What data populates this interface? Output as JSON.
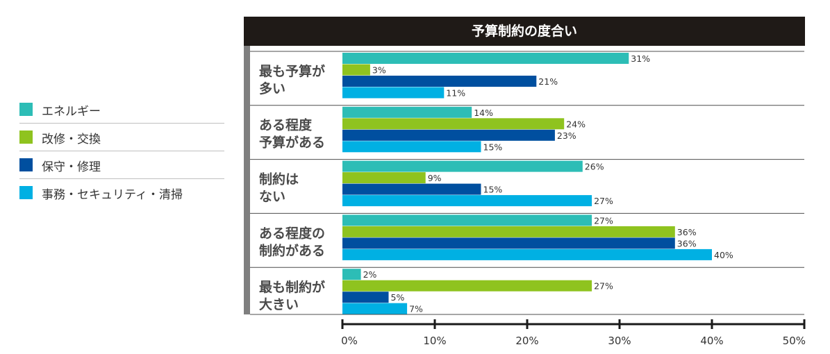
{
  "legend": {
    "items": [
      {
        "label": "エネルギー",
        "color": "#2dbdb6"
      },
      {
        "label": "改修・交換",
        "color": "#8fc31f"
      },
      {
        "label": "保守・修理",
        "color": "#004f9f"
      },
      {
        "label": "事務・セキュリティ・清掃",
        "color": "#00b0e3"
      }
    ]
  },
  "chart_data": {
    "type": "bar",
    "orientation": "horizontal",
    "title": "予算制約の度合い",
    "categories": [
      [
        "最も予算が",
        "多い"
      ],
      [
        "ある程度",
        "予算がある"
      ],
      [
        "制約は",
        "ない"
      ],
      [
        "ある程度の",
        "制約がある"
      ],
      [
        "最も制約が",
        "大きい"
      ]
    ],
    "series": [
      {
        "name": "エネルギー",
        "color": "#2dbdb6",
        "values": [
          31,
          14,
          26,
          27,
          2
        ]
      },
      {
        "name": "改修・交換",
        "color": "#8fc31f",
        "values": [
          3,
          24,
          9,
          36,
          27
        ]
      },
      {
        "name": "保守・修理",
        "color": "#004f9f",
        "values": [
          21,
          23,
          15,
          36,
          5
        ]
      },
      {
        "name": "事務・セキュリティ・清掃",
        "color": "#00b0e3",
        "values": [
          11,
          15,
          27,
          40,
          7
        ]
      }
    ],
    "xlim": [
      0,
      50
    ],
    "xticks": [
      0,
      10,
      20,
      30,
      40,
      50
    ],
    "tick_suffix": "%",
    "value_suffix": "%",
    "legend_position": "left"
  }
}
